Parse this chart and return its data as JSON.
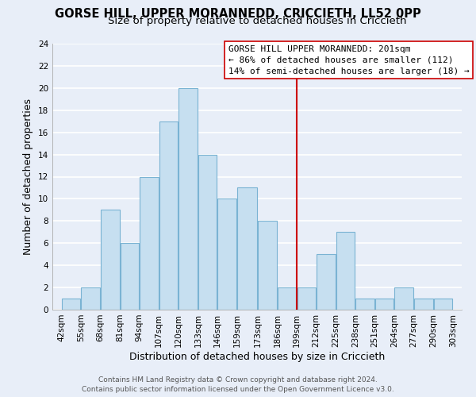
{
  "title": "GORSE HILL, UPPER MORANNEDD, CRICCIETH, LL52 0PP",
  "subtitle": "Size of property relative to detached houses in Criccieth",
  "xlabel": "Distribution of detached houses by size in Criccieth",
  "ylabel": "Number of detached properties",
  "bar_edges": [
    42,
    55,
    68,
    81,
    94,
    107,
    120,
    133,
    146,
    159,
    173,
    186,
    199,
    212,
    225,
    238,
    251,
    264,
    277,
    290,
    303
  ],
  "bar_heights": [
    1,
    2,
    9,
    6,
    12,
    17,
    20,
    14,
    10,
    11,
    8,
    2,
    2,
    5,
    7,
    1,
    1,
    2,
    1,
    1
  ],
  "bar_color": "#c6dff0",
  "bar_edge_color": "#7ab3d3",
  "vline_x": 199,
  "vline_color": "#cc0000",
  "ylim": [
    0,
    24
  ],
  "yticks": [
    0,
    2,
    4,
    6,
    8,
    10,
    12,
    14,
    16,
    18,
    20,
    22,
    24
  ],
  "tick_labels": [
    "42sqm",
    "55sqm",
    "68sqm",
    "81sqm",
    "94sqm",
    "107sqm",
    "120sqm",
    "133sqm",
    "146sqm",
    "159sqm",
    "173sqm",
    "186sqm",
    "199sqm",
    "212sqm",
    "225sqm",
    "238sqm",
    "251sqm",
    "264sqm",
    "277sqm",
    "290sqm",
    "303sqm"
  ],
  "annotation_title": "GORSE HILL UPPER MORANNEDD: 201sqm",
  "annotation_line1": "← 86% of detached houses are smaller (112)",
  "annotation_line2": "14% of semi-detached houses are larger (18) →",
  "footer1": "Contains HM Land Registry data © Crown copyright and database right 2024.",
  "footer2": "Contains public sector information licensed under the Open Government Licence v3.0.",
  "background_color": "#e8eef8",
  "grid_color": "#ffffff",
  "title_fontsize": 10.5,
  "subtitle_fontsize": 9.5,
  "axis_label_fontsize": 9,
  "tick_fontsize": 7.5,
  "annotation_fontsize": 8,
  "footer_fontsize": 6.5
}
